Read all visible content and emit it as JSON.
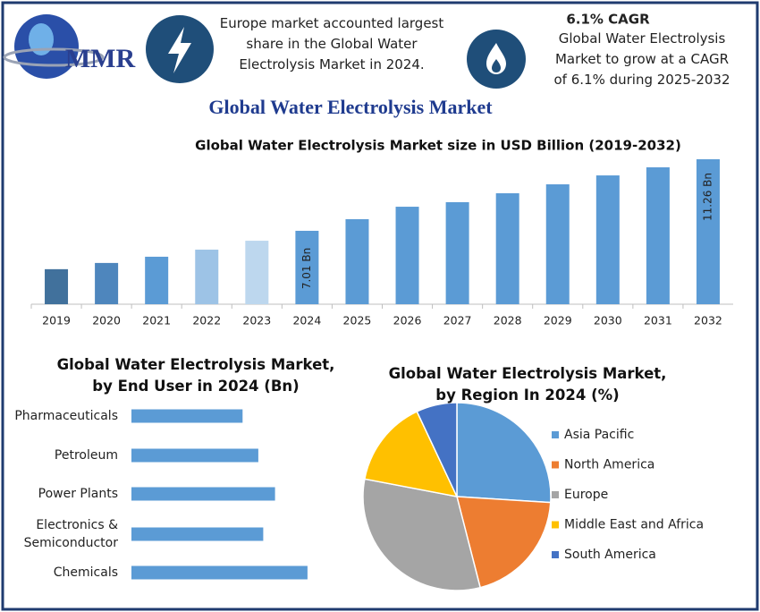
{
  "header": {
    "logo_text": "MMR",
    "europe_note": "Europe market accounted largest share in the Global Water Electrolysis Market in 2024.",
    "cagr_title": "6.1% CAGR",
    "cagr_note": "Global Water Electrolysis Market to grow at a CAGR of 6.1% during 2025-2032",
    "main_title": "Global Water Electrolysis Market"
  },
  "chart_data": [
    {
      "type": "bar",
      "title": "Global Water Electrolysis Market size in USD Billion (2019-2032)",
      "categories": [
        "2019",
        "2020",
        "2021",
        "2022",
        "2023",
        "2024",
        "2025",
        "2026",
        "2027",
        "2028",
        "2029",
        "2030",
        "2031",
        "2032"
      ],
      "values": [
        4.73,
        5.1,
        5.47,
        5.89,
        6.42,
        7.01,
        7.7,
        8.44,
        8.71,
        9.24,
        9.77,
        10.3,
        10.78,
        11.26
      ],
      "value_labels": [
        null,
        null,
        null,
        null,
        null,
        "7.01 Bn",
        null,
        null,
        null,
        null,
        null,
        null,
        null,
        "11.26 Bn"
      ],
      "colors": [
        "#41719c",
        "#4e86bd",
        "#5b9bd5",
        "#9dc3e6",
        "#bdd7ee",
        "#5b9bd5",
        "#5b9bd5",
        "#5b9bd5",
        "#5b9bd5",
        "#5b9bd5",
        "#5b9bd5",
        "#5b9bd5",
        "#5b9bd5",
        "#5b9bd5"
      ],
      "ylim": [
        2.65,
        11.95
      ]
    },
    {
      "type": "hbar",
      "title": "Global Water Electrolysis Market, by End User in 2024 (Bn)",
      "categories": [
        "Pharmaceuticals",
        "Petroleum",
        "Power Plants",
        "Electronics & Semiconductor",
        "Chemicals"
      ],
      "values": [
        1.13,
        1.29,
        1.46,
        1.34,
        1.79
      ],
      "color": "#5b9bd5",
      "xlim": [
        0,
        2.3
      ]
    },
    {
      "type": "pie",
      "title": "Global Water Electrolysis Market, by Region In 2024 (%)",
      "categories": [
        "Asia Pacific",
        "North America",
        "Europe",
        "Middle East and Africa",
        "South America"
      ],
      "values": [
        26,
        20,
        32,
        15,
        7
      ],
      "colors": [
        "#5b9bd5",
        "#ed7d31",
        "#a5a5a5",
        "#ffc000",
        "#4472c4"
      ]
    }
  ]
}
